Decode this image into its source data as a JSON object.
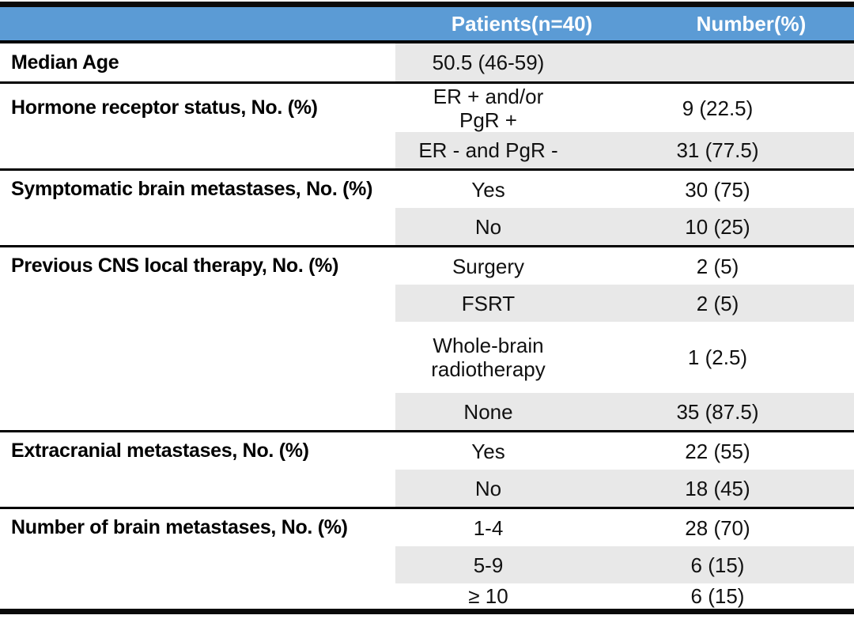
{
  "header": {
    "col1": "",
    "patients": "Patients(n=40)",
    "number": "Number(%)"
  },
  "colors": {
    "header_bg": "#5b9bd5",
    "header_text": "#ffffff",
    "row_shade": "#e8e8e8",
    "rule": "#000000"
  },
  "sections": [
    {
      "label": "Median Age",
      "rows": [
        {
          "category": "50.5 (46-59)",
          "value": ""
        }
      ]
    },
    {
      "label": "Hormone receptor status, No. (%)",
      "rows": [
        {
          "category": "ER + and/or\nPgR +",
          "value": "9 (22.5)"
        },
        {
          "category": "ER - and PgR -",
          "value": "31 (77.5)"
        }
      ]
    },
    {
      "label": "Symptomatic brain metastases, No. (%)",
      "rows": [
        {
          "category": "Yes",
          "value": "30 (75)"
        },
        {
          "category": "No",
          "value": "10 (25)"
        }
      ]
    },
    {
      "label": "Previous CNS local therapy, No. (%)",
      "rows": [
        {
          "category": "Surgery",
          "value": "2 (5)"
        },
        {
          "category": "FSRT",
          "value": "2 (5)"
        },
        {
          "category": "Whole-brain\nradiotherapy",
          "value": "1 (2.5)"
        },
        {
          "category": "None",
          "value": "35 (87.5)"
        }
      ]
    },
    {
      "label": "Extracranial metastases, No. (%)",
      "rows": [
        {
          "category": "Yes",
          "value": "22 (55)"
        },
        {
          "category": "No",
          "value": "18 (45)"
        }
      ]
    },
    {
      "label": "Number of brain metastases, No. (%)",
      "rows": [
        {
          "category": "1-4",
          "value": "28 (70)"
        },
        {
          "category": "5-9",
          "value": "6 (15)"
        },
        {
          "category": "≥ 10",
          "value": "6 (15)"
        }
      ]
    }
  ]
}
